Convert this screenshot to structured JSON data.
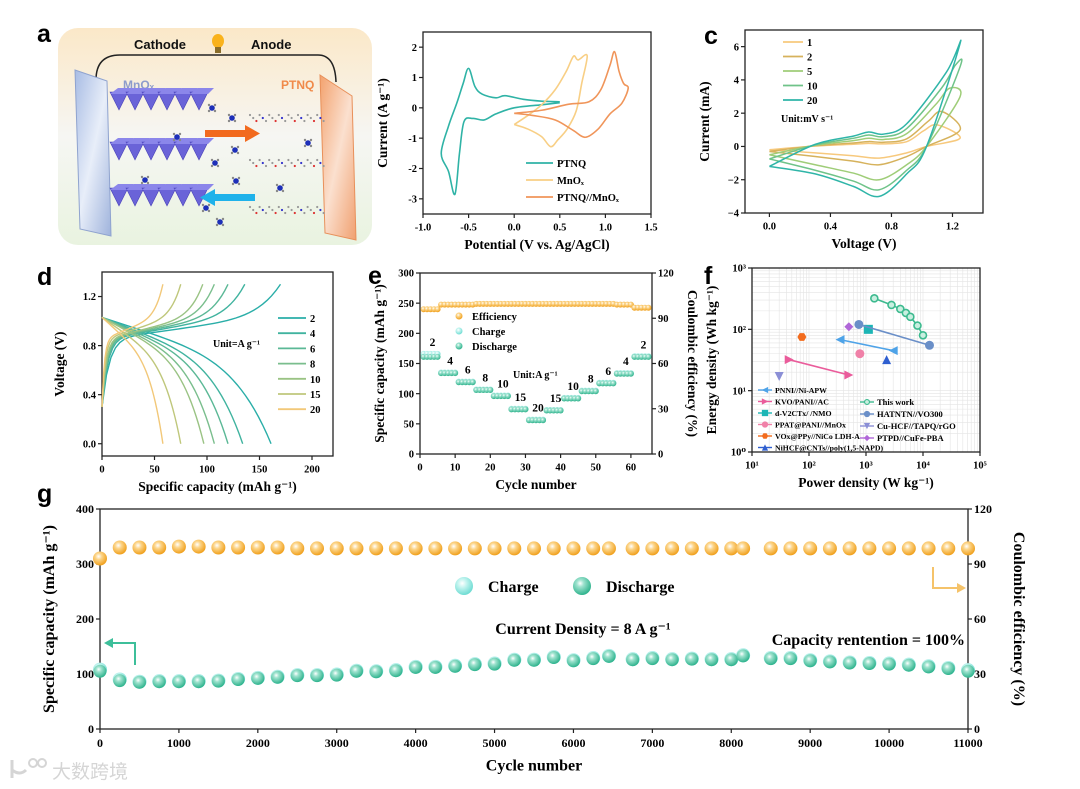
{
  "figure": {
    "panel_labels": {
      "a": "a",
      "c": "c",
      "d": "d",
      "e": "e",
      "f": "f",
      "g": "g"
    },
    "watermark": "大数跨境"
  },
  "schematic": {
    "cathode": "Cathode",
    "anode": "Anode",
    "left_material": "MnOₓ",
    "right_material": "PTNQ"
  },
  "chart_data": [
    {
      "id": "b",
      "type": "line",
      "xlabel": "Potential (V vs. Ag/AgCl)",
      "ylabel": "Current (A g⁻¹)",
      "xlim": [
        -1.0,
        1.5
      ],
      "ylim": [
        -3.5,
        2.5
      ],
      "xticks": [
        -1.0,
        -0.5,
        0.0,
        0.5,
        1.0,
        1.5
      ],
      "xtick_labels": [
        "-1.0",
        "-0.5",
        "0.0",
        "0.5",
        "1.0",
        "1.5"
      ],
      "yticks": [
        -3,
        -2,
        -1,
        0,
        1,
        2
      ],
      "ytick_labels": [
        "-3",
        "-2",
        "-1",
        "0",
        "1",
        "2"
      ],
      "legend": "bottom-right",
      "series": [
        {
          "name": "PTNQ",
          "color": "#2fb3a6",
          "points": [
            [
              0.5,
              0.2
            ],
            [
              0.3,
              0.22
            ],
            [
              0.1,
              0.28
            ],
            [
              -0.1,
              0.4
            ],
            [
              -0.2,
              0.33
            ],
            [
              -0.35,
              0.45
            ],
            [
              -0.43,
              0.7
            ],
            [
              -0.5,
              1.3
            ],
            [
              -0.56,
              0.8
            ],
            [
              -0.63,
              0.15
            ],
            [
              -0.72,
              -0.6
            ],
            [
              -0.8,
              -1.5
            ],
            [
              -0.72,
              -2.1
            ],
            [
              -0.65,
              -2.85
            ],
            [
              -0.6,
              -1.5
            ],
            [
              -0.55,
              -0.45
            ],
            [
              -0.45,
              -0.35
            ],
            [
              -0.33,
              -0.4
            ],
            [
              -0.2,
              -0.2
            ],
            [
              0.0,
              0.0
            ],
            [
              0.3,
              0.1
            ],
            [
              0.5,
              0.17
            ]
          ]
        },
        {
          "name": "MnOₓ",
          "color": "#f8cf85",
          "points": [
            [
              0.0,
              -0.55
            ],
            [
              0.15,
              -0.25
            ],
            [
              0.3,
              0.1
            ],
            [
              0.45,
              0.6
            ],
            [
              0.57,
              1.2
            ],
            [
              0.65,
              1.7
            ],
            [
              0.7,
              1.58
            ],
            [
              0.8,
              1.72
            ],
            [
              0.74,
              0.8
            ],
            [
              0.68,
              -0.1
            ],
            [
              0.58,
              -0.7
            ],
            [
              0.48,
              -1.05
            ],
            [
              0.4,
              -1.28
            ],
            [
              0.3,
              -0.95
            ],
            [
              0.15,
              -0.7
            ],
            [
              0.0,
              -0.55
            ]
          ]
        },
        {
          "name": "PTNQ//MnOₓ",
          "color": "#f0955a",
          "points": [
            [
              0.0,
              -0.18
            ],
            [
              0.3,
              -0.08
            ],
            [
              0.6,
              0.12
            ],
            [
              0.82,
              0.2
            ],
            [
              0.95,
              0.6
            ],
            [
              1.05,
              1.4
            ],
            [
              1.1,
              1.85
            ],
            [
              1.15,
              1.2
            ],
            [
              1.2,
              0.8
            ],
            [
              1.25,
              0.65
            ],
            [
              1.18,
              0.15
            ],
            [
              1.05,
              -0.2
            ],
            [
              0.92,
              -0.7
            ],
            [
              0.78,
              -0.97
            ],
            [
              0.65,
              -0.75
            ],
            [
              0.45,
              -0.4
            ],
            [
              0.2,
              -0.25
            ],
            [
              0.0,
              -0.18
            ]
          ]
        }
      ]
    },
    {
      "id": "c",
      "type": "line",
      "xlabel": "Voltage (V)",
      "ylabel": "Current (mA)",
      "xlim": [
        -0.16,
        1.4
      ],
      "ylim": [
        -4,
        7
      ],
      "xticks": [
        0.0,
        0.4,
        0.8,
        1.2
      ],
      "xtick_labels": [
        "0.0",
        "0.4",
        "0.8",
        "1.2"
      ],
      "yticks": [
        -4,
        -2,
        0,
        2,
        4,
        6
      ],
      "ytick_labels": [
        "−4",
        "−2",
        "0",
        "2",
        "4",
        "6"
      ],
      "annotation": "Unit:mV s⁻¹",
      "legend": "top-left",
      "series": [
        {
          "name": "1",
          "color": "#f7c97d",
          "anodic_peak_mA": 1.3,
          "anodic_peak_V": 1.1,
          "cathodic_peak_mA": -0.7,
          "current_at_1_25V_mA": 0.5,
          "current_at_0V_mA": -0.2
        },
        {
          "name": "2",
          "color": "#d6b25c",
          "anodic_peak_mA": 2.1,
          "anodic_peak_V": 1.13,
          "cathodic_peak_mA": -1.1,
          "current_at_1_25V_mA": 1.0,
          "current_at_0V_mA": -0.3
        },
        {
          "name": "5",
          "color": "#9fcd78",
          "anodic_peak_mA": 3.5,
          "anodic_peak_V": 1.18,
          "cathodic_peak_mA": -2.0,
          "current_at_1_25V_mA": 3.0,
          "current_at_0V_mA": -0.5
        },
        {
          "name": "10",
          "color": "#6fc389",
          "anodic_peak_mA": 4.9,
          "anodic_peak_V": 1.22,
          "cathodic_peak_mA": -2.6,
          "current_at_1_25V_mA": 4.8,
          "current_at_0V_mA": -0.75
        },
        {
          "name": "20",
          "color": "#2fb5a8",
          "anodic_peak_mA": 6.2,
          "anodic_peak_V": 1.25,
          "cathodic_peak_mA": -3.0,
          "current_at_1_25V_mA": 6.2,
          "current_at_0V_mA": -1.2
        }
      ]
    },
    {
      "id": "d",
      "type": "line",
      "xlabel": "Specific capacity (mAh g⁻¹)",
      "ylabel": "Voltage (V)",
      "xlim": [
        0,
        220
      ],
      "ylim": [
        -0.1,
        1.4
      ],
      "xticks": [
        0,
        50,
        100,
        150,
        200
      ],
      "xtick_labels": [
        "0",
        "50",
        "100",
        "150",
        "200"
      ],
      "yticks": [
        0.0,
        0.4,
        0.8,
        1.2
      ],
      "ytick_labels": [
        "0.0",
        "0.4",
        "0.8",
        "1.2"
      ],
      "annotation": "Unit=A g⁻¹",
      "legend": "right",
      "series": [
        {
          "name": "2",
          "color": "#2aaea8",
          "charge_capacity": 170,
          "discharge_capacity": 161
        },
        {
          "name": "4",
          "color": "#40b39f",
          "charge_capacity": 136,
          "discharge_capacity": 134
        },
        {
          "name": "6",
          "color": "#5bb896",
          "charge_capacity": 120,
          "discharge_capacity": 120
        },
        {
          "name": "8",
          "color": "#7abe8d",
          "charge_capacity": 107,
          "discharge_capacity": 107
        },
        {
          "name": "10",
          "color": "#9ac384",
          "charge_capacity": 96,
          "discharge_capacity": 97
        },
        {
          "name": "15",
          "color": "#bfc77b",
          "charge_capacity": 75,
          "discharge_capacity": 75
        },
        {
          "name": "20",
          "color": "#f2c879",
          "charge_capacity": 58,
          "discharge_capacity": 58
        }
      ]
    },
    {
      "id": "e",
      "type": "scatter",
      "xlabel": "Cycle number",
      "ylabel": "Specific capacity (mAh g⁻¹)",
      "y2label": "Coulombic efficiency (%)",
      "xlim": [
        0,
        66
      ],
      "ylim": [
        0,
        300
      ],
      "y2lim": [
        0,
        120
      ],
      "xticks": [
        0,
        10,
        20,
        30,
        40,
        50,
        60
      ],
      "xtick_labels": [
        "0",
        "10",
        "20",
        "30",
        "40",
        "50",
        "60"
      ],
      "yticks": [
        0,
        50,
        100,
        150,
        200,
        250,
        300
      ],
      "ytick_labels": [
        "0",
        "50",
        "100",
        "150",
        "200",
        "250",
        "300"
      ],
      "y2ticks": [
        0,
        30,
        60,
        90,
        120
      ],
      "y2tick_labels": [
        "0",
        "30",
        "60",
        "90",
        "120"
      ],
      "legend_entries": [
        "Efficiency",
        "Charge",
        "Discharge"
      ],
      "colors": {
        "efficiency": "#f5a623",
        "charge": "#8fe6df",
        "discharge": "#3dbf9a"
      },
      "annotation": "Unit:A g⁻¹",
      "segments": [
        {
          "rate": "2",
          "cycles": [
            1,
            5
          ],
          "charge": 166,
          "discharge": 161,
          "efficiency": 96
        },
        {
          "rate": "4",
          "cycles": [
            6,
            10
          ],
          "charge": 135,
          "discharge": 134,
          "efficiency": 99
        },
        {
          "rate": "6",
          "cycles": [
            11,
            15
          ],
          "charge": 120,
          "discharge": 119,
          "efficiency": 99
        },
        {
          "rate": "8",
          "cycles": [
            16,
            20
          ],
          "charge": 107,
          "discharge": 106,
          "efficiency": 99.5
        },
        {
          "rate": "10",
          "cycles": [
            21,
            25
          ],
          "charge": 97,
          "discharge": 96,
          "efficiency": 99.5
        },
        {
          "rate": "15",
          "cycles": [
            26,
            30
          ],
          "charge": 75,
          "discharge": 74,
          "efficiency": 99.5
        },
        {
          "rate": "20",
          "cycles": [
            31,
            35
          ],
          "charge": 57,
          "discharge": 56,
          "efficiency": 99.5
        },
        {
          "rate": "15",
          "cycles": [
            36,
            40
          ],
          "charge": 73,
          "discharge": 72,
          "efficiency": 99.5
        },
        {
          "rate": "10",
          "cycles": [
            41,
            45
          ],
          "charge": 93,
          "discharge": 92,
          "efficiency": 99.5
        },
        {
          "rate": "8",
          "cycles": [
            46,
            50
          ],
          "charge": 105,
          "discharge": 104,
          "efficiency": 99.5
        },
        {
          "rate": "6",
          "cycles": [
            51,
            55
          ],
          "charge": 118,
          "discharge": 117,
          "efficiency": 99.5
        },
        {
          "rate": "4",
          "cycles": [
            56,
            60
          ],
          "charge": 134,
          "discharge": 133,
          "efficiency": 99
        },
        {
          "rate": "2",
          "cycles": [
            61,
            65
          ],
          "charge": 162,
          "discharge": 161,
          "efficiency": 97
        }
      ]
    },
    {
      "id": "f",
      "type": "scatter",
      "xlabel": "Power density (W kg⁻¹)",
      "ylabel": "Energy density (Wh kg⁻¹)",
      "xscale": "log",
      "yscale": "log",
      "xlim": [
        10,
        100000
      ],
      "ylim": [
        1,
        1000
      ],
      "xticks": [
        10,
        100,
        1000,
        10000,
        100000
      ],
      "xtick_labels": [
        "10¹",
        "10²",
        "10³",
        "10⁴",
        "10⁵"
      ],
      "yticks": [
        1,
        10,
        100,
        1000
      ],
      "ytick_labels": [
        "10⁰",
        "10¹",
        "10²",
        "10³"
      ],
      "grid": true,
      "legend": "bottom",
      "series": [
        {
          "name": "PNNI//Ni-APW",
          "color": "#4ea3e8",
          "marker": "tri-left",
          "points": [
            [
              350,
              68
            ],
            [
              3000,
              45
            ]
          ]
        },
        {
          "name": "KVO/PANI//AC",
          "color": "#ea5c9b",
          "marker": "tri-right",
          "points": [
            [
              45,
              32
            ],
            [
              500,
              18
            ]
          ]
        },
        {
          "name": "d-V2CTx/ /NMO",
          "color": "#1cb5b5",
          "marker": "square",
          "points": [
            [
              1100,
              100
            ]
          ]
        },
        {
          "name": "PPAT@PANI//MnOx",
          "color": "#f081a8",
          "marker": "circle",
          "points": [
            [
              780,
              40
            ]
          ]
        },
        {
          "name": "VOx@PPy//NiCo LDH-A",
          "color": "#f26b1d",
          "marker": "hexagon",
          "points": [
            [
              75,
              75
            ]
          ]
        },
        {
          "name": "NiHCF@CNTs//poly(1,5-NAPD)",
          "color": "#2f5fd0",
          "marker": "tri-up",
          "points": [
            [
              2300,
              32
            ]
          ]
        },
        {
          "name": "This work",
          "color": "#3dba8f",
          "marker": "circle-open",
          "points": [
            [
              1400,
              320
            ],
            [
              2800,
              250
            ],
            [
              4000,
              215
            ],
            [
              5000,
              185
            ],
            [
              6000,
              160
            ],
            [
              8000,
              115
            ],
            [
              10000,
              80
            ]
          ]
        },
        {
          "name": "HATNTN//VO300",
          "color": "#6a8fc8",
          "marker": "circle",
          "points": [
            [
              750,
              120
            ],
            [
              13000,
              55
            ]
          ]
        },
        {
          "name": "Cu-HCF//TAPQ/rGO",
          "color": "#8b8fd6",
          "marker": "tri-down",
          "points": [
            [
              30,
              17
            ]
          ]
        },
        {
          "name": "PTPD//CuFe-PBA",
          "color": "#b067d8",
          "marker": "diamond",
          "points": [
            [
              500,
              110
            ]
          ]
        }
      ]
    },
    {
      "id": "g",
      "type": "scatter",
      "xlabel": "Cycle number",
      "ylabel": "Specific capacity (mAh g⁻¹)",
      "y2label": "Coulombic efficiency (%)",
      "xlim": [
        0,
        11000
      ],
      "ylim": [
        0,
        400
      ],
      "y2lim": [
        0,
        120
      ],
      "xticks": [
        0,
        1000,
        2000,
        3000,
        4000,
        5000,
        6000,
        7000,
        8000,
        9000,
        10000,
        11000
      ],
      "xtick_labels": [
        "0",
        "1000",
        "2000",
        "3000",
        "4000",
        "5000",
        "6000",
        "7000",
        "8000",
        "9000",
        "10000",
        "11000"
      ],
      "yticks": [
        0,
        100,
        200,
        300,
        400
      ],
      "ytick_labels": [
        "0",
        "100",
        "200",
        "300",
        "400"
      ],
      "y2ticks": [
        0,
        30,
        60,
        90,
        120
      ],
      "y2tick_labels": [
        "0",
        "30",
        "60",
        "90",
        "120"
      ],
      "legend_entries": [
        "Charge",
        "Discharge"
      ],
      "colors": {
        "efficiency": "#f5a623",
        "charge": "#8fe6df",
        "discharge": "#3dbf9a"
      },
      "annotations": {
        "current_density": "Current Density = 8 A g⁻¹",
        "retention": "Capacity rentention = 100%"
      },
      "x": [
        0,
        250,
        500,
        750,
        1000,
        1250,
        1500,
        1750,
        2000,
        2250,
        2500,
        2750,
        3000,
        3250,
        3500,
        3750,
        4000,
        4250,
        4500,
        4750,
        5000,
        5250,
        5500,
        5750,
        6000,
        6250,
        6450,
        6750,
        7000,
        7250,
        7500,
        7750,
        8000,
        8150,
        8500,
        8750,
        9000,
        9250,
        9500,
        9750,
        10000,
        10250,
        10500,
        10750,
        11000
      ],
      "discharge": [
        105,
        88,
        85,
        86,
        86,
        86,
        87,
        90,
        92,
        94,
        97,
        97,
        98,
        105,
        104,
        106,
        112,
        112,
        114,
        117,
        118,
        125,
        125,
        130,
        124,
        128,
        132,
        126,
        128,
        126,
        127,
        126,
        126,
        133,
        128,
        128,
        124,
        122,
        120,
        119,
        118,
        116,
        113,
        110,
        105
      ],
      "charge": [
        108,
        90,
        86,
        87,
        87,
        87,
        88,
        91,
        93,
        95,
        98,
        98,
        99,
        106,
        105,
        107,
        113,
        113,
        115,
        118,
        119,
        126,
        126,
        131,
        125,
        129,
        133,
        127,
        129,
        127,
        128,
        127,
        127,
        134,
        129,
        129,
        125,
        123,
        121,
        120,
        119,
        117,
        114,
        111,
        107
      ],
      "efficiency": [
        93,
        99,
        99,
        99,
        99.5,
        99.5,
        99,
        99,
        99,
        99,
        98.5,
        98.5,
        98.5,
        98.5,
        98.5,
        98.5,
        98.5,
        98.5,
        98.5,
        98.5,
        98.5,
        98.5,
        98.5,
        98.5,
        98.5,
        98.5,
        98.5,
        98.5,
        98.5,
        98.5,
        98.5,
        98.5,
        98.5,
        98.5,
        98.5,
        98.5,
        98.5,
        98.5,
        98.5,
        98.5,
        98.5,
        98.5,
        98.5,
        98.5,
        98.5
      ]
    }
  ]
}
